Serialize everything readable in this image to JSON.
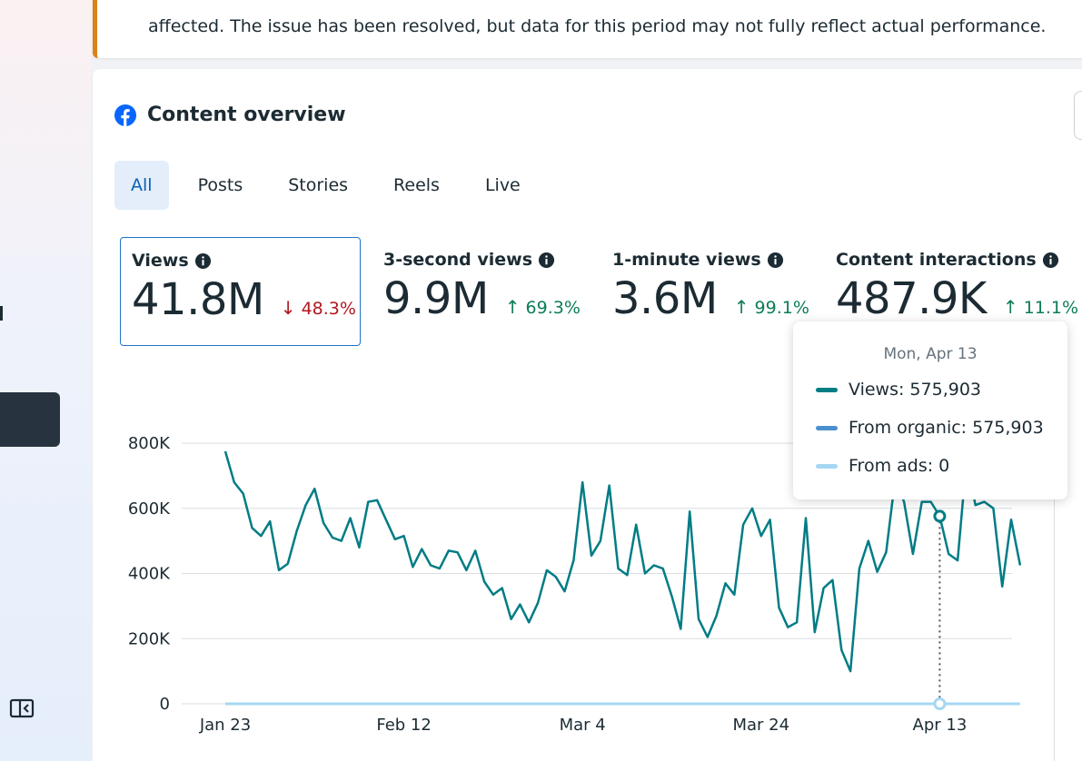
{
  "banner": {
    "text": "affected. The issue has been resolved, but data for this period may not fully reflect actual performance."
  },
  "card": {
    "title": "Content overview",
    "icon": "facebook-icon"
  },
  "tabs": [
    {
      "label": "All",
      "active": true
    },
    {
      "label": "Posts",
      "active": false
    },
    {
      "label": "Stories",
      "active": false
    },
    {
      "label": "Reels",
      "active": false
    },
    {
      "label": "Live",
      "active": false
    }
  ],
  "metrics": [
    {
      "label": "Views",
      "value": "41.8M",
      "change": "48.3%",
      "direction": "down",
      "selected": true
    },
    {
      "label": "3-second views",
      "value": "9.9M",
      "change": "69.3%",
      "direction": "up",
      "selected": false
    },
    {
      "label": "1-minute views",
      "value": "3.6M",
      "change": "99.1%",
      "direction": "up",
      "selected": false
    },
    {
      "label": "Content interactions",
      "value": "487.9K",
      "change": "11.1%",
      "direction": "up",
      "selected": false
    }
  ],
  "tooltip": {
    "date": "Mon, Apr 13",
    "rows": [
      {
        "label": "Views: 575,903",
        "color": "#007c85"
      },
      {
        "label": "From organic: 575,903",
        "color": "#4a90d0"
      },
      {
        "label": "From ads: 0",
        "color": "#a6d7f2"
      }
    ]
  },
  "colors": {
    "views_line": "#007c85",
    "ads_line": "#a6d7f2",
    "selected_border": "#1b74c9",
    "down": "#b3171f",
    "up": "#0c7d55"
  },
  "chart_data": {
    "type": "line",
    "x_tick_labels": [
      "Jan 23",
      "Feb 12",
      "Mar 4",
      "Mar 24",
      "Apr 13"
    ],
    "y_tick_labels": [
      "0",
      "200K",
      "400K",
      "600K",
      "800K"
    ],
    "ylim": [
      0,
      800000
    ],
    "grid": true,
    "highlight_day_index": 80,
    "series": [
      {
        "name": "Views",
        "values": [
          775000,
          680000,
          645000,
          540000,
          515000,
          560000,
          410000,
          430000,
          530000,
          610000,
          660000,
          555000,
          510000,
          500000,
          570000,
          480000,
          620000,
          625000,
          565000,
          505000,
          515000,
          420000,
          475000,
          425000,
          415000,
          470000,
          465000,
          410000,
          470000,
          375000,
          335000,
          355000,
          260000,
          305000,
          250000,
          310000,
          410000,
          390000,
          345000,
          440000,
          680000,
          455000,
          500000,
          670000,
          415000,
          395000,
          550000,
          400000,
          425000,
          415000,
          330000,
          230000,
          590000,
          260000,
          205000,
          270000,
          370000,
          335000,
          550000,
          600000,
          515000,
          565000,
          295000,
          235000,
          250000,
          570000,
          220000,
          355000,
          380000,
          165000,
          100000,
          415000,
          500000,
          405000,
          465000,
          690000,
          620000,
          460000,
          620000,
          620000,
          575903,
          460000,
          440000,
          750000,
          610000,
          620000,
          600000,
          360000,
          565000,
          425000
        ]
      },
      {
        "name": "From ads",
        "values": [
          0,
          0,
          0,
          0,
          0,
          0,
          0,
          0,
          0,
          0,
          0,
          0,
          0,
          0,
          0,
          0,
          0,
          0,
          0,
          0,
          0,
          0,
          0,
          0,
          0,
          0,
          0,
          0,
          0,
          0,
          0,
          0,
          0,
          0,
          0,
          0,
          0,
          0,
          0,
          0,
          0,
          0,
          0,
          0,
          0,
          0,
          0,
          0,
          0,
          0,
          0,
          0,
          0,
          0,
          0,
          0,
          0,
          0,
          0,
          0,
          0,
          0,
          0,
          0,
          0,
          0,
          0,
          0,
          0,
          0,
          0,
          0,
          0,
          0,
          0,
          0,
          0,
          0,
          0,
          0,
          0,
          0,
          0,
          0,
          0,
          0,
          0,
          0,
          0,
          0
        ]
      }
    ]
  }
}
